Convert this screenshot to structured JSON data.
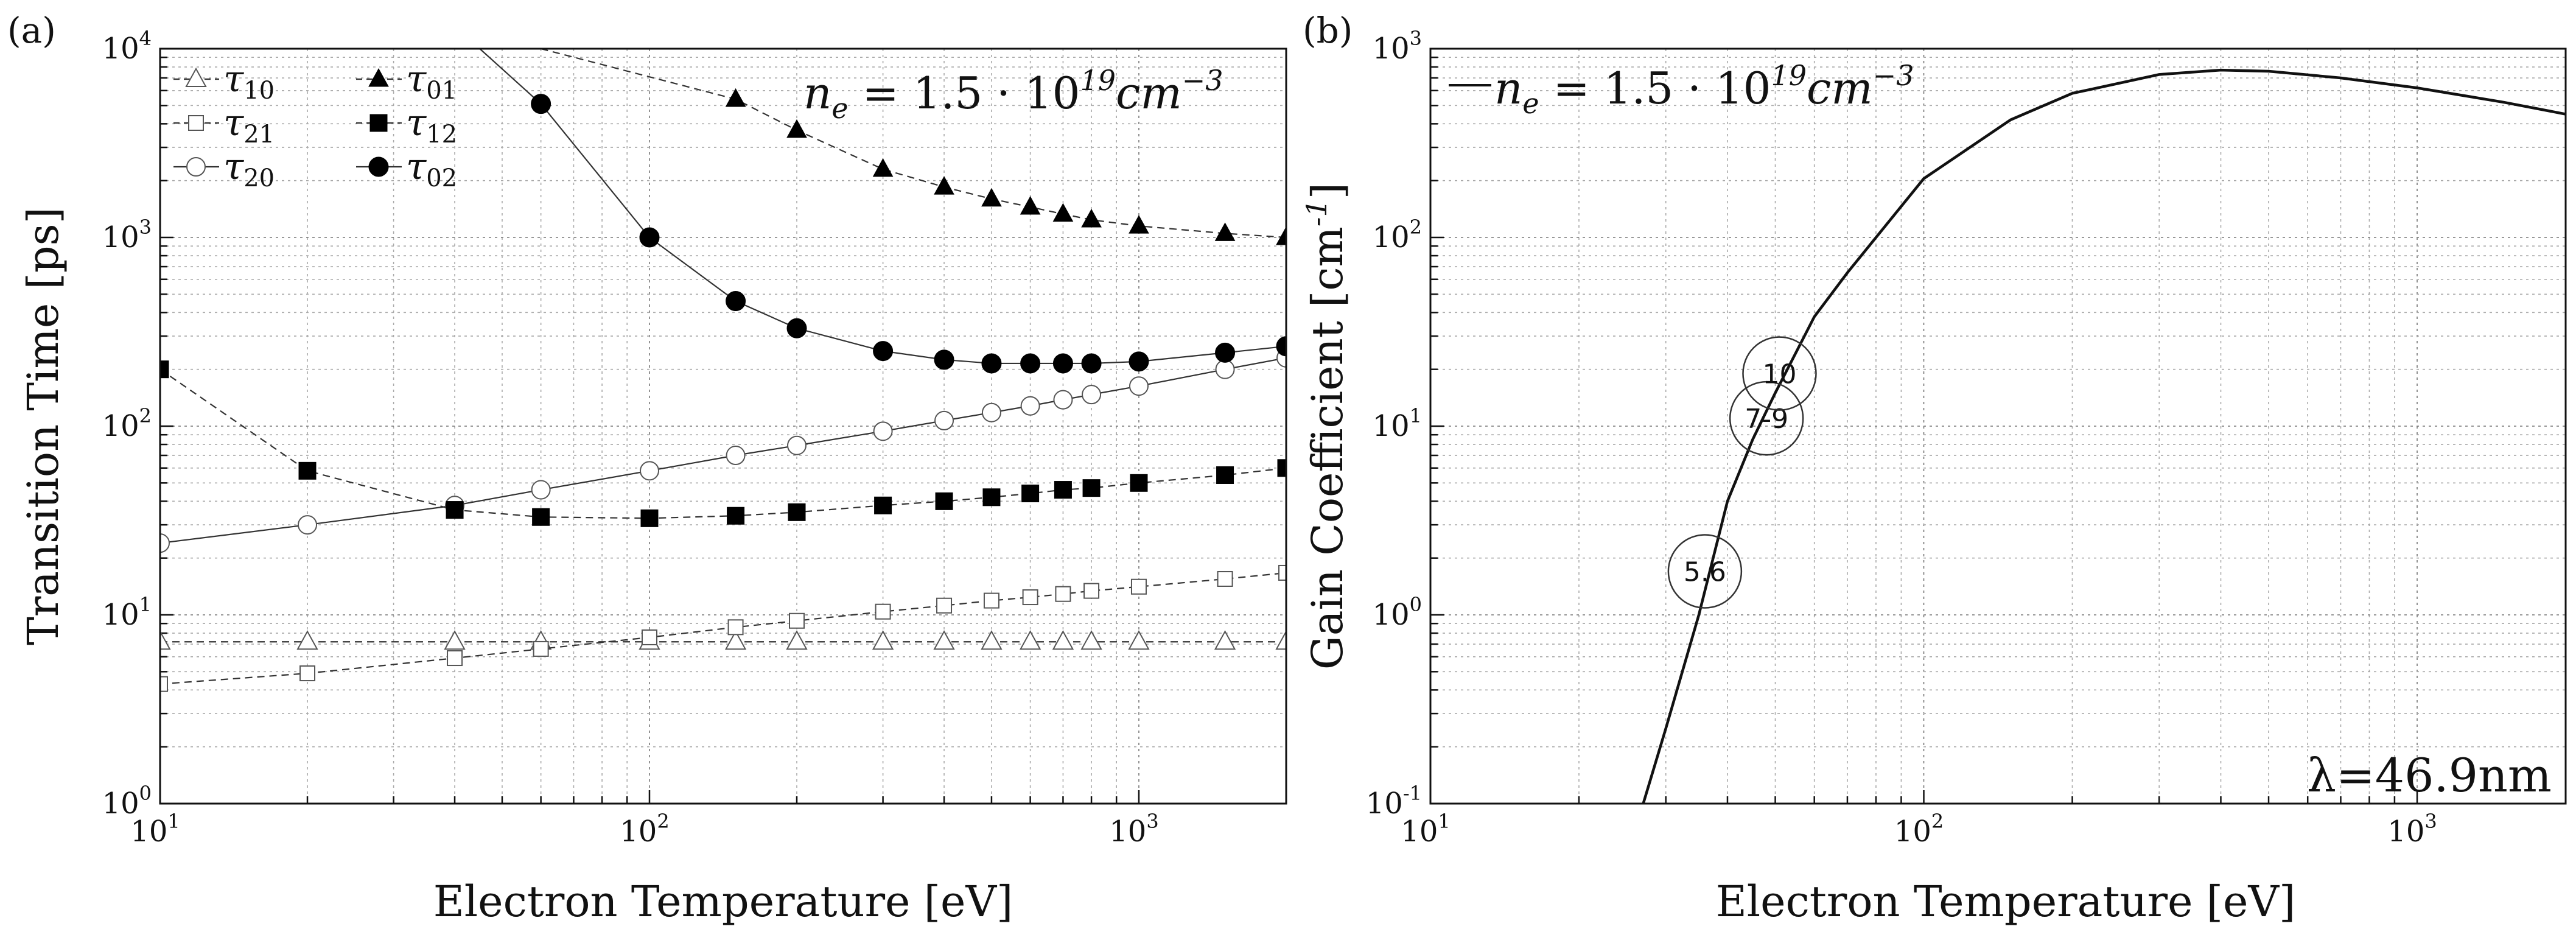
{
  "chart_data": [
    {
      "panel_label": "(a)",
      "type": "line",
      "xscale": "log",
      "yscale": "log",
      "xlim": [
        10,
        2000
      ],
      "ylim": [
        1,
        10000
      ],
      "xlabel": "Electron Temperature [eV]",
      "ylabel": "Transition Time [ps]",
      "x_ticks": [
        {
          "base": "10",
          "exp": "1",
          "value": 10
        },
        {
          "base": "10",
          "exp": "2",
          "value": 100
        },
        {
          "base": "10",
          "exp": "3",
          "value": 1000
        }
      ],
      "y_ticks": [
        {
          "base": "10",
          "exp": "0",
          "value": 1
        },
        {
          "base": "10",
          "exp": "1",
          "value": 10
        },
        {
          "base": "10",
          "exp": "2",
          "value": 100
        },
        {
          "base": "10",
          "exp": "3",
          "value": 1000
        },
        {
          "base": "10",
          "exp": "4",
          "value": 10000
        }
      ],
      "grid": true,
      "annotation": {
        "lhs": "n",
        "sub": "e",
        "mid": " = 1.5 · 10",
        "exp": "19",
        "unit": "cm",
        "unit_exp": "−3"
      },
      "series": [
        {
          "name": "τ10",
          "sym": "τ",
          "sub": "10",
          "marker": "triangle-open",
          "dash": true,
          "x": [
            10,
            20,
            40,
            60,
            100,
            150,
            200,
            300,
            400,
            500,
            600,
            700,
            800,
            1000,
            1500,
            2000
          ],
          "y": [
            7.2,
            7.2,
            7.2,
            7.2,
            7.2,
            7.2,
            7.2,
            7.2,
            7.2,
            7.2,
            7.2,
            7.2,
            7.2,
            7.2,
            7.2,
            7.2
          ]
        },
        {
          "name": "τ21",
          "sym": "τ",
          "sub": "21",
          "marker": "square-open",
          "dash": true,
          "x": [
            10,
            20,
            40,
            60,
            100,
            150,
            200,
            300,
            400,
            500,
            600,
            700,
            800,
            1000,
            1500,
            2000
          ],
          "y": [
            4.3,
            4.9,
            5.9,
            6.6,
            7.6,
            8.6,
            9.3,
            10.4,
            11.2,
            11.9,
            12.4,
            12.9,
            13.4,
            14.1,
            15.5,
            16.7
          ]
        },
        {
          "name": "τ20",
          "sym": "τ",
          "sub": "20",
          "marker": "circle-open",
          "dash": false,
          "x": [
            10,
            20,
            40,
            60,
            100,
            150,
            200,
            300,
            400,
            500,
            600,
            700,
            800,
            1000,
            1500,
            2000
          ],
          "y": [
            24,
            30,
            38,
            46,
            58,
            70,
            79,
            94,
            107,
            118,
            128,
            138,
            147,
            163,
            200,
            230
          ]
        },
        {
          "name": "τ01",
          "sym": "τ",
          "sub": "01",
          "marker": "triangle-filled",
          "dash": true,
          "x": [
            60,
            150,
            200,
            300,
            400,
            500,
            600,
            700,
            800,
            1000,
            1500,
            2000
          ],
          "y": [
            10000,
            5400,
            3700,
            2300,
            1850,
            1600,
            1450,
            1330,
            1240,
            1150,
            1050,
            1000
          ]
        },
        {
          "name": "τ12",
          "sym": "τ",
          "sub": "12",
          "marker": "square-filled",
          "dash": true,
          "x": [
            10,
            20,
            40,
            60,
            100,
            150,
            200,
            300,
            400,
            500,
            600,
            700,
            800,
            1000,
            1500,
            2000
          ],
          "y": [
            200,
            58,
            36,
            33,
            32.5,
            33.5,
            35,
            38,
            40,
            42,
            44,
            46,
            47,
            50,
            55,
            60
          ]
        },
        {
          "name": "τ02",
          "sym": "τ",
          "sub": "02",
          "marker": "circle-filled",
          "dash": false,
          "x": [
            45,
            60,
            100,
            150,
            200,
            300,
            400,
            500,
            600,
            700,
            800,
            1000,
            1500,
            2000
          ],
          "y": [
            10000,
            5100,
            1000,
            460,
            330,
            250,
            225,
            215,
            215,
            215,
            215,
            220,
            245,
            265
          ]
        }
      ]
    },
    {
      "panel_label": "(b)",
      "type": "line",
      "xscale": "log",
      "yscale": "log",
      "xlim": [
        10,
        2000
      ],
      "ylim": [
        0.1,
        1000
      ],
      "xlabel": "Electron Temperature [eV]",
      "ylabel_main": "Gain Coefficient [cm",
      "ylabel_sup": "-1",
      "ylabel_end": "]",
      "x_ticks": [
        {
          "base": "10",
          "exp": "1",
          "value": 10
        },
        {
          "base": "10",
          "exp": "2",
          "value": 100
        },
        {
          "base": "10",
          "exp": "3",
          "value": 1000
        }
      ],
      "y_ticks": [
        {
          "base": "10",
          "exp": "-1",
          "value": 0.1
        },
        {
          "base": "10",
          "exp": "0",
          "value": 1
        },
        {
          "base": "10",
          "exp": "1",
          "value": 10
        },
        {
          "base": "10",
          "exp": "2",
          "value": 100
        },
        {
          "base": "10",
          "exp": "3",
          "value": 1000
        }
      ],
      "grid": true,
      "legend": {
        "lhs": "n",
        "sub": "e",
        "mid": " = 1.5 · 10",
        "exp": "19",
        "unit": "cm",
        "unit_exp": "−3"
      },
      "wavelength_label": "λ=46.9nm",
      "series": [
        {
          "name": "gain",
          "x": [
            27,
            30,
            35,
            40,
            45,
            50,
            60,
            70,
            100,
            150,
            200,
            300,
            400,
            500,
            700,
            1000,
            1500,
            2000
          ],
          "y": [
            0.1,
            0.25,
            1.0,
            4.0,
            8.5,
            15,
            38,
            65,
            205,
            420,
            580,
            730,
            770,
            760,
            700,
            620,
            520,
            450
          ]
        }
      ],
      "circle_labels": [
        {
          "text": "5.6",
          "x": 36,
          "y": 1.7
        },
        {
          "text": "7-9",
          "x": 48,
          "y": 11
        },
        {
          "text": "10",
          "x": 51,
          "y": 19
        }
      ]
    }
  ]
}
